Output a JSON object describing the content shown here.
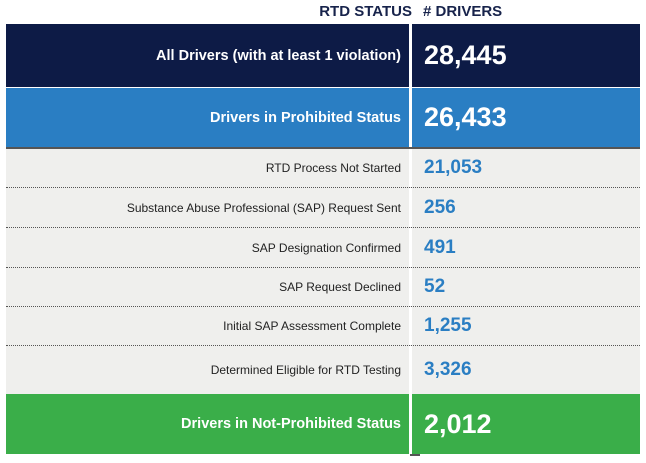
{
  "chart_data": {
    "type": "table",
    "columns": [
      "RTD STATUS",
      "# DRIVERS"
    ],
    "rows": [
      {
        "label": "All Drivers (with at least 1 violation)",
        "value": "28,445",
        "level": "total"
      },
      {
        "label": "Drivers in Prohibited Status",
        "value": "26,433",
        "level": "group"
      },
      {
        "label": "RTD Process Not Started",
        "value": "21,053",
        "level": "sub"
      },
      {
        "label": "Substance Abuse Professional (SAP) Request Sent",
        "value": "256",
        "level": "sub"
      },
      {
        "label": "SAP Designation Confirmed",
        "value": "491",
        "level": "sub"
      },
      {
        "label": "SAP Request Declined",
        "value": "52",
        "level": "sub"
      },
      {
        "label": "Initial SAP Assessment Complete",
        "value": "1,255",
        "level": "sub"
      },
      {
        "label": "Determined Eligible for RTD Testing",
        "value": "3,326",
        "level": "sub"
      },
      {
        "label": "Drivers in Not-Prohibited Status",
        "value": "2,012",
        "level": "group"
      }
    ],
    "colors": {
      "navy": "#0d1b46",
      "blue": "#2a7ec3",
      "green": "#3aae49",
      "sub_bg": "#efefed"
    }
  }
}
